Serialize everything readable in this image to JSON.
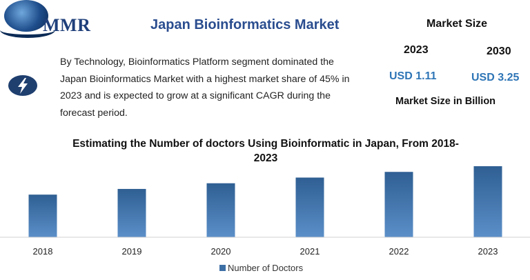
{
  "logo": {
    "text": "MMR",
    "icon": "globe-logo-icon"
  },
  "header": {
    "title": "Japan Bioinformatics Market"
  },
  "summary": {
    "icon": "lightning-bolt-icon",
    "text": "By Technology, Bioinformatics Platform segment dominated the Japan Bioinformatics Market with a highest market share of 45% in 2023 and is expected to grow at a significant CAGR during the forecast period."
  },
  "market_size": {
    "title": "Market Size",
    "years": [
      "2023",
      "2030"
    ],
    "values": [
      "USD 1.11",
      "USD 3.25"
    ],
    "subtitle": "Market Size in Billion",
    "value_color": "#2e75b6"
  },
  "chart_data": {
    "type": "bar",
    "title": "Estimating the Number of doctors Using Bioinformatic in  Japan, From 2018-2023",
    "categories": [
      "2018",
      "2019",
      "2020",
      "2021",
      "2022",
      "2023"
    ],
    "series": [
      {
        "name": "Number of Doctors",
        "values": [
          60,
          68,
          76,
          84,
          92,
          100
        ],
        "color": "#3d6fa5"
      }
    ],
    "legend": "bottom",
    "grid": false,
    "y_axis_visible": false,
    "ylim": [
      0,
      100
    ]
  }
}
